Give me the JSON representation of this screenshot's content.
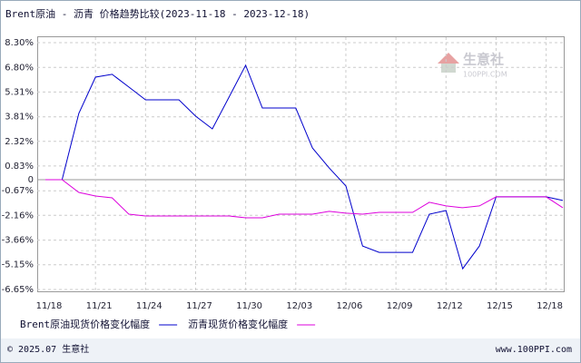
{
  "chart_data": {
    "type": "line",
    "title": "Brent原油 - 沥青 价格趋势比较(2023-11-18 - 2023-12-18)",
    "categories": [
      "11/18",
      null,
      null,
      "11/21",
      null,
      null,
      "11/24",
      null,
      null,
      "11/27",
      null,
      null,
      "11/30",
      null,
      null,
      "12/03",
      null,
      null,
      "12/06",
      null,
      null,
      "12/09",
      null,
      null,
      "12/12",
      null,
      null,
      "12/15",
      null,
      null,
      "12/18",
      null
    ],
    "series": [
      {
        "name": "Brent原油现货价格变化幅度",
        "color": "#0000cc",
        "values": [
          0,
          0,
          4.01,
          6.21,
          6.38,
          5.61,
          4.84,
          4.84,
          4.84,
          3.85,
          3.08,
          5.0,
          6.93,
          4.34,
          4.34,
          4.34,
          1.92,
          0.71,
          -0.38,
          -4.02,
          -4.4,
          -4.4,
          -4.4,
          -2.09,
          -1.87,
          -5.39,
          -4.02,
          -1.04,
          -1.04,
          -1.04,
          -1.04,
          -1.26
        ]
      },
      {
        "name": "沥青现货价格变化幅度",
        "color": "#dd00dd",
        "values": [
          0,
          0,
          -0.77,
          -0.99,
          -1.1,
          -2.09,
          -2.2,
          -2.2,
          -2.2,
          -2.2,
          -2.2,
          -2.2,
          -2.31,
          -2.31,
          -2.09,
          -2.09,
          -2.09,
          -1.92,
          -2.03,
          -2.09,
          -1.98,
          -1.98,
          -1.98,
          -1.37,
          -1.59,
          -1.7,
          -1.59,
          -1.04,
          -1.04,
          -1.04,
          -1.04,
          -1.7
        ]
      }
    ],
    "ylim": [
      -6.65,
      8.3
    ],
    "yticks": [
      {
        "value": 8.3,
        "label": "8.30%"
      },
      {
        "value": 6.8,
        "label": "6.80%"
      },
      {
        "value": 5.31,
        "label": "5.31%"
      },
      {
        "value": 3.81,
        "label": "3.81%"
      },
      {
        "value": 2.32,
        "label": "2.32%"
      },
      {
        "value": 0.83,
        "label": "0.83%"
      },
      0,
      {
        "value": -0.67,
        "label": "-0.67%"
      },
      {
        "value": -2.16,
        "label": "-2.16%"
      },
      {
        "value": -3.66,
        "label": "-3.66%"
      },
      {
        "value": -5.15,
        "label": "-5.15%"
      },
      {
        "value": -6.65,
        "label": "-6.65%"
      }
    ],
    "grid": true,
    "legend": "bottom"
  },
  "watermark": {
    "name": "生意社",
    "site": "100PPI.COM"
  },
  "footer": {
    "copyright": "© 2025.07 生意社",
    "site": "www.100PPI.com"
  }
}
